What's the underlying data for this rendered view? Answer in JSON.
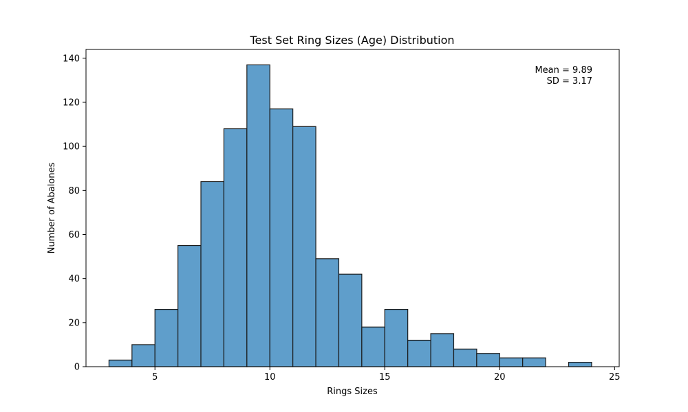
{
  "chart_data": {
    "type": "bar",
    "title": "Test Set Ring Sizes (Age) Distribution",
    "xlabel": "Rings Sizes",
    "ylabel": "Number of Abalones",
    "xlim": [
      2,
      25.2
    ],
    "ylim": [
      0,
      144
    ],
    "xticks": [
      5,
      10,
      15,
      20,
      25
    ],
    "yticks": [
      0,
      20,
      40,
      60,
      80,
      100,
      120,
      140
    ],
    "bins": [
      {
        "x0": 3,
        "x1": 4,
        "count": 3
      },
      {
        "x0": 4,
        "x1": 5,
        "count": 10
      },
      {
        "x0": 5,
        "x1": 6,
        "count": 26
      },
      {
        "x0": 6,
        "x1": 7,
        "count": 55
      },
      {
        "x0": 7,
        "x1": 8,
        "count": 84
      },
      {
        "x0": 8,
        "x1": 9,
        "count": 108
      },
      {
        "x0": 9,
        "x1": 10,
        "count": 137
      },
      {
        "x0": 10,
        "x1": 11,
        "count": 117
      },
      {
        "x0": 11,
        "x1": 12,
        "count": 109
      },
      {
        "x0": 12,
        "x1": 13,
        "count": 49
      },
      {
        "x0": 13,
        "x1": 14,
        "count": 42
      },
      {
        "x0": 14,
        "x1": 15,
        "count": 18
      },
      {
        "x0": 15,
        "x1": 16,
        "count": 26
      },
      {
        "x0": 16,
        "x1": 17,
        "count": 12
      },
      {
        "x0": 17,
        "x1": 18,
        "count": 15
      },
      {
        "x0": 18,
        "x1": 19,
        "count": 8
      },
      {
        "x0": 19,
        "x1": 20,
        "count": 6
      },
      {
        "x0": 20,
        "x1": 21,
        "count": 4
      },
      {
        "x0": 21,
        "x1": 22,
        "count": 4
      },
      {
        "x0": 22,
        "x1": 23,
        "count": 0
      },
      {
        "x0": 23,
        "x1": 24,
        "count": 2
      }
    ],
    "annotations": [
      "Mean = 9.89",
      "SD = 3.17"
    ],
    "grid": false,
    "colors": {
      "bar_fill": "#5f9ecb",
      "bar_edge": "#1a1a1a"
    }
  }
}
